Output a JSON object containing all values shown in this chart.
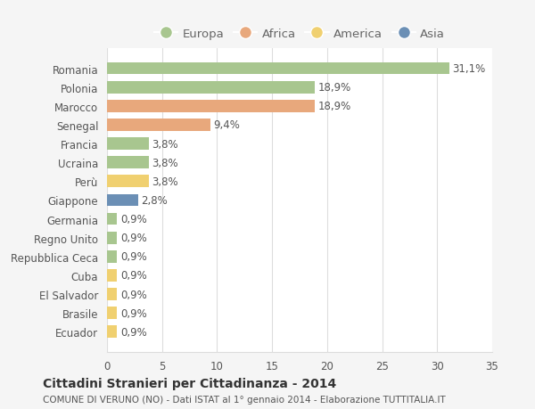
{
  "categories": [
    "Romania",
    "Polonia",
    "Marocco",
    "Senegal",
    "Francia",
    "Ucraina",
    "Perù",
    "Giappone",
    "Germania",
    "Regno Unito",
    "Repubblica Ceca",
    "Cuba",
    "El Salvador",
    "Brasile",
    "Ecuador"
  ],
  "values": [
    31.1,
    18.9,
    18.9,
    9.4,
    3.8,
    3.8,
    3.8,
    2.8,
    0.9,
    0.9,
    0.9,
    0.9,
    0.9,
    0.9,
    0.9
  ],
  "labels": [
    "31,1%",
    "18,9%",
    "18,9%",
    "9,4%",
    "3,8%",
    "3,8%",
    "3,8%",
    "2,8%",
    "0,9%",
    "0,9%",
    "0,9%",
    "0,9%",
    "0,9%",
    "0,9%",
    "0,9%"
  ],
  "colors": [
    "#a8c68f",
    "#a8c68f",
    "#e8a87c",
    "#e8a87c",
    "#a8c68f",
    "#a8c68f",
    "#f0d070",
    "#6b8fb5",
    "#a8c68f",
    "#a8c68f",
    "#a8c68f",
    "#f0d070",
    "#f0d070",
    "#f0d070",
    "#f0d070"
  ],
  "legend_labels": [
    "Europa",
    "Africa",
    "America",
    "Asia"
  ],
  "legend_colors": [
    "#a8c68f",
    "#e8a87c",
    "#f0d070",
    "#6b8fb5"
  ],
  "title": "Cittadini Stranieri per Cittadinanza - 2014",
  "subtitle": "COMUNE DI VERUNO (NO) - Dati ISTAT al 1° gennaio 2014 - Elaborazione TUTTITALIA.IT",
  "xlim": [
    0,
    35
  ],
  "xticks": [
    0,
    5,
    10,
    15,
    20,
    25,
    30,
    35
  ],
  "bg_color": "#f5f5f5",
  "plot_bg_color": "#ffffff",
  "grid_color": "#dddddd",
  "bar_height": 0.65,
  "label_fontsize": 8.5,
  "tick_fontsize": 8.5
}
